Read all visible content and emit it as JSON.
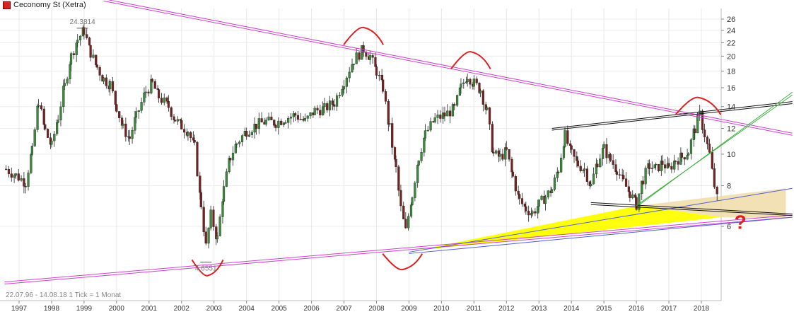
{
  "legend": {
    "label": "Ceconomy St (Xetra)",
    "color": "#e02020"
  },
  "footer_note": "22.07.96 - 14.08.18   1 Tick = 1 Monat",
  "chart_data": {
    "type": "candlestick",
    "scale": "log",
    "ylim": [
      4.6,
      27
    ],
    "y_ticks": [
      6,
      8,
      10,
      12,
      14,
      16,
      18,
      20,
      22,
      24,
      26
    ],
    "x_ticks": [
      "1997",
      "1998",
      "1999",
      "2000",
      "2001",
      "2002",
      "2003",
      "2004",
      "2005",
      "2006",
      "2007",
      "2008",
      "2009",
      "2010",
      "2011",
      "2012",
      "2013",
      "2014",
      "2015",
      "2016",
      "2017",
      "2018"
    ],
    "x_range": [
      1996.55,
      2018.62
    ],
    "annotations": [
      {
        "type": "high_label",
        "text": "24.3814",
        "x": 1998.95,
        "y": 24.38
      },
      {
        "type": "low_label",
        "text": "4.6551",
        "x": 2002.75,
        "y": 4.66
      },
      {
        "type": "symbol",
        "text": "?",
        "color": "#e02020"
      }
    ],
    "colors": {
      "up": "#3a8c3a",
      "down": "#7a2020",
      "trend": "#d040d0",
      "blue": "#5060d0",
      "green": "#40b040",
      "black": "#111111",
      "arc": "#e02020",
      "fill_yellow": "#ffff00",
      "fill_beige": "#f0dca8"
    },
    "series": [
      {
        "name": "Ceconomy St (Xetra)",
        "values": [
          {
            "x": 1996.6,
            "y": 9.0
          },
          {
            "x": 1996.9,
            "y": 8.6
          },
          {
            "x": 1997.2,
            "y": 8.2
          },
          {
            "x": 1997.4,
            "y": 10.2
          },
          {
            "x": 1997.6,
            "y": 14.6
          },
          {
            "x": 1997.8,
            "y": 11.8
          },
          {
            "x": 1998.0,
            "y": 10.6
          },
          {
            "x": 1998.2,
            "y": 13.0
          },
          {
            "x": 1998.4,
            "y": 16.2
          },
          {
            "x": 1998.6,
            "y": 20.0
          },
          {
            "x": 1998.8,
            "y": 22.5
          },
          {
            "x": 1999.0,
            "y": 24.0
          },
          {
            "x": 1999.2,
            "y": 20.5
          },
          {
            "x": 1999.4,
            "y": 18.5
          },
          {
            "x": 1999.6,
            "y": 17.0
          },
          {
            "x": 1999.8,
            "y": 16.4
          },
          {
            "x": 2000.0,
            "y": 14.0
          },
          {
            "x": 2000.2,
            "y": 12.0
          },
          {
            "x": 2000.4,
            "y": 11.2
          },
          {
            "x": 2000.6,
            "y": 13.0
          },
          {
            "x": 2000.9,
            "y": 15.6
          },
          {
            "x": 2001.1,
            "y": 16.5
          },
          {
            "x": 2001.3,
            "y": 15.0
          },
          {
            "x": 2001.6,
            "y": 14.0
          },
          {
            "x": 2001.8,
            "y": 12.8
          },
          {
            "x": 2002.0,
            "y": 12.2
          },
          {
            "x": 2002.2,
            "y": 11.8
          },
          {
            "x": 2002.4,
            "y": 10.5
          },
          {
            "x": 2002.6,
            "y": 7.0
          },
          {
            "x": 2002.75,
            "y": 5.2
          },
          {
            "x": 2002.9,
            "y": 6.5
          },
          {
            "x": 2003.1,
            "y": 5.5
          },
          {
            "x": 2003.3,
            "y": 7.8
          },
          {
            "x": 2003.5,
            "y": 9.8
          },
          {
            "x": 2003.7,
            "y": 10.8
          },
          {
            "x": 2004.0,
            "y": 11.8
          },
          {
            "x": 2004.3,
            "y": 12.3
          },
          {
            "x": 2004.6,
            "y": 12.6
          },
          {
            "x": 2004.9,
            "y": 12.5
          },
          {
            "x": 2005.2,
            "y": 12.9
          },
          {
            "x": 2005.5,
            "y": 13.2
          },
          {
            "x": 2005.8,
            "y": 12.6
          },
          {
            "x": 2006.1,
            "y": 13.6
          },
          {
            "x": 2006.4,
            "y": 13.8
          },
          {
            "x": 2006.7,
            "y": 14.4
          },
          {
            "x": 2007.0,
            "y": 16.8
          },
          {
            "x": 2007.3,
            "y": 19.5
          },
          {
            "x": 2007.6,
            "y": 21.0
          },
          {
            "x": 2007.8,
            "y": 20.0
          },
          {
            "x": 2008.0,
            "y": 18.0
          },
          {
            "x": 2008.2,
            "y": 16.0
          },
          {
            "x": 2008.4,
            "y": 12.0
          },
          {
            "x": 2008.6,
            "y": 9.0
          },
          {
            "x": 2008.75,
            "y": 6.8
          },
          {
            "x": 2008.9,
            "y": 5.8
          },
          {
            "x": 2009.1,
            "y": 7.5
          },
          {
            "x": 2009.3,
            "y": 9.8
          },
          {
            "x": 2009.5,
            "y": 11.5
          },
          {
            "x": 2009.8,
            "y": 12.8
          },
          {
            "x": 2010.1,
            "y": 13.2
          },
          {
            "x": 2010.4,
            "y": 13.8
          },
          {
            "x": 2010.6,
            "y": 16.0
          },
          {
            "x": 2010.8,
            "y": 17.5
          },
          {
            "x": 2011.0,
            "y": 16.5
          },
          {
            "x": 2011.2,
            "y": 15.8
          },
          {
            "x": 2011.4,
            "y": 13.5
          },
          {
            "x": 2011.6,
            "y": 10.0
          },
          {
            "x": 2011.8,
            "y": 9.8
          },
          {
            "x": 2012.0,
            "y": 10.2
          },
          {
            "x": 2012.2,
            "y": 8.5
          },
          {
            "x": 2012.4,
            "y": 7.2
          },
          {
            "x": 2012.6,
            "y": 6.8
          },
          {
            "x": 2012.8,
            "y": 6.6
          },
          {
            "x": 2013.0,
            "y": 7.0
          },
          {
            "x": 2013.2,
            "y": 7.4
          },
          {
            "x": 2013.4,
            "y": 7.8
          },
          {
            "x": 2013.6,
            "y": 9.0
          },
          {
            "x": 2013.8,
            "y": 11.4
          },
          {
            "x": 2014.0,
            "y": 10.0
          },
          {
            "x": 2014.2,
            "y": 9.3
          },
          {
            "x": 2014.4,
            "y": 9.0
          },
          {
            "x": 2014.6,
            "y": 8.0
          },
          {
            "x": 2014.8,
            "y": 9.5
          },
          {
            "x": 2015.0,
            "y": 10.4
          },
          {
            "x": 2015.2,
            "y": 9.6
          },
          {
            "x": 2015.4,
            "y": 9.0
          },
          {
            "x": 2015.6,
            "y": 8.2
          },
          {
            "x": 2015.8,
            "y": 7.6
          },
          {
            "x": 2016.0,
            "y": 7.0
          },
          {
            "x": 2016.2,
            "y": 8.4
          },
          {
            "x": 2016.4,
            "y": 9.2
          },
          {
            "x": 2016.6,
            "y": 9.0
          },
          {
            "x": 2016.8,
            "y": 9.4
          },
          {
            "x": 2017.0,
            "y": 9.0
          },
          {
            "x": 2017.2,
            "y": 9.6
          },
          {
            "x": 2017.4,
            "y": 9.8
          },
          {
            "x": 2017.6,
            "y": 10.2
          },
          {
            "x": 2017.8,
            "y": 12.0
          },
          {
            "x": 2017.95,
            "y": 13.2
          },
          {
            "x": 2018.1,
            "y": 11.5
          },
          {
            "x": 2018.25,
            "y": 10.0
          },
          {
            "x": 2018.4,
            "y": 8.0
          },
          {
            "x": 2018.55,
            "y": 6.8
          }
        ]
      }
    ]
  }
}
